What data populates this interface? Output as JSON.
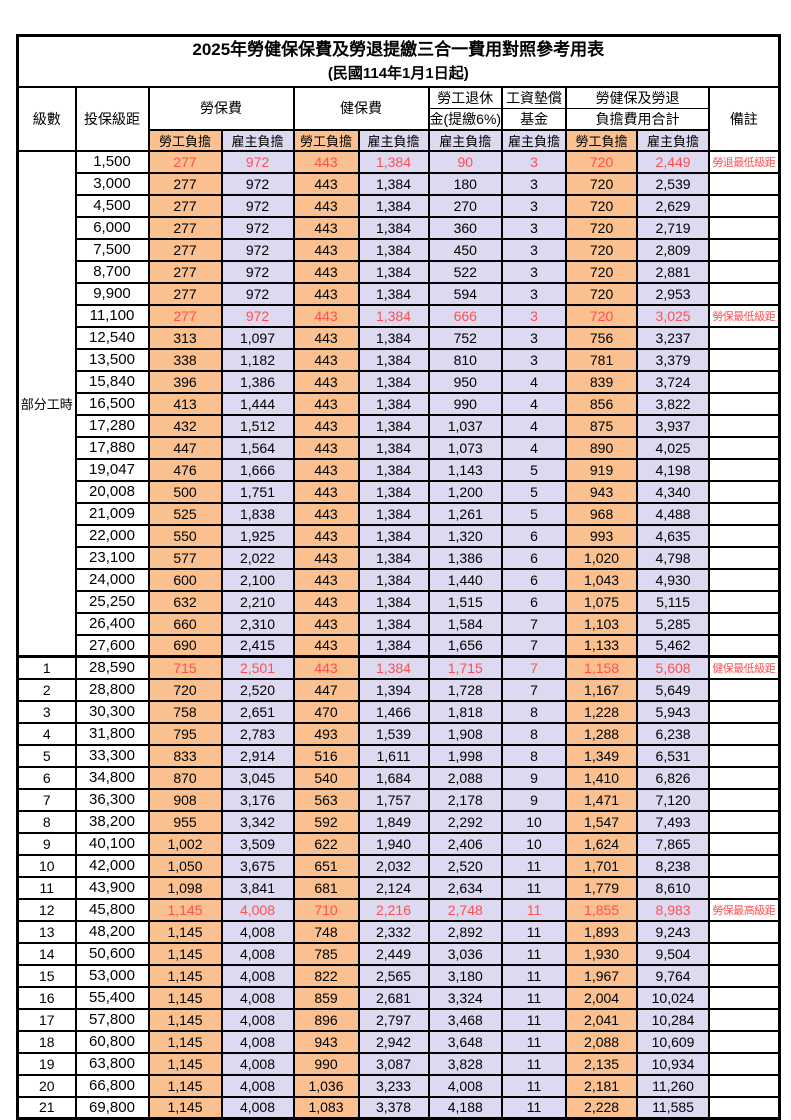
{
  "colors": {
    "employee_bg": "#FAC090",
    "employer_bg": "#DCD9F0",
    "highlight_red": "#FF5050"
  },
  "table": {
    "title": "2025年勞健保保費及勞退提繳三合一費用對照參考用表",
    "subtitle": "(民國114年1月1日起)",
    "headers": {
      "level": "級數",
      "bracket": "投保級距",
      "labor_insurance": "勞保費",
      "health_insurance": "健保費",
      "pension_line1": "勞工退休",
      "pension_line2": "金(提繳6%)",
      "wage_fund_line1": "工資墊償",
      "wage_fund_line2": "基金",
      "total_line1": "勞健保及勞退",
      "total_line2": "負擔費用合計",
      "remark": "備註",
      "employee_share": "勞工負擔",
      "employer_share": "雇主負擔"
    },
    "part_time_label": "部分工時",
    "rows": [
      {
        "level": null,
        "bracket": "1,500",
        "values": [
          "277",
          "972",
          "443",
          "1,384",
          "90",
          "3",
          "720",
          "2,449"
        ],
        "remark": "勞退最低級距",
        "red": true
      },
      {
        "level": null,
        "bracket": "3,000",
        "values": [
          "277",
          "972",
          "443",
          "1,384",
          "180",
          "3",
          "720",
          "2,539"
        ],
        "remark": "",
        "red": false
      },
      {
        "level": null,
        "bracket": "4,500",
        "values": [
          "277",
          "972",
          "443",
          "1,384",
          "270",
          "3",
          "720",
          "2,629"
        ],
        "remark": "",
        "red": false
      },
      {
        "level": null,
        "bracket": "6,000",
        "values": [
          "277",
          "972",
          "443",
          "1,384",
          "360",
          "3",
          "720",
          "2,719"
        ],
        "remark": "",
        "red": false
      },
      {
        "level": null,
        "bracket": "7,500",
        "values": [
          "277",
          "972",
          "443",
          "1,384",
          "450",
          "3",
          "720",
          "2,809"
        ],
        "remark": "",
        "red": false
      },
      {
        "level": null,
        "bracket": "8,700",
        "values": [
          "277",
          "972",
          "443",
          "1,384",
          "522",
          "3",
          "720",
          "2,881"
        ],
        "remark": "",
        "red": false
      },
      {
        "level": null,
        "bracket": "9,900",
        "values": [
          "277",
          "972",
          "443",
          "1,384",
          "594",
          "3",
          "720",
          "2,953"
        ],
        "remark": "",
        "red": false
      },
      {
        "level": null,
        "bracket": "11,100",
        "values": [
          "277",
          "972",
          "443",
          "1,384",
          "666",
          "3",
          "720",
          "3,025"
        ],
        "remark": "勞保最低級距",
        "red": true
      },
      {
        "level": null,
        "bracket": "12,540",
        "values": [
          "313",
          "1,097",
          "443",
          "1,384",
          "752",
          "3",
          "756",
          "3,237"
        ],
        "remark": "",
        "red": false
      },
      {
        "level": null,
        "bracket": "13,500",
        "values": [
          "338",
          "1,182",
          "443",
          "1,384",
          "810",
          "3",
          "781",
          "3,379"
        ],
        "remark": "",
        "red": false
      },
      {
        "level": null,
        "bracket": "15,840",
        "values": [
          "396",
          "1,386",
          "443",
          "1,384",
          "950",
          "4",
          "839",
          "3,724"
        ],
        "remark": "",
        "red": false
      },
      {
        "level": null,
        "bracket": "16,500",
        "values": [
          "413",
          "1,444",
          "443",
          "1,384",
          "990",
          "4",
          "856",
          "3,822"
        ],
        "remark": "",
        "red": false
      },
      {
        "level": null,
        "bracket": "17,280",
        "values": [
          "432",
          "1,512",
          "443",
          "1,384",
          "1,037",
          "4",
          "875",
          "3,937"
        ],
        "remark": "",
        "red": false
      },
      {
        "level": null,
        "bracket": "17,880",
        "values": [
          "447",
          "1,564",
          "443",
          "1,384",
          "1,073",
          "4",
          "890",
          "4,025"
        ],
        "remark": "",
        "red": false
      },
      {
        "level": null,
        "bracket": "19,047",
        "values": [
          "476",
          "1,666",
          "443",
          "1,384",
          "1,143",
          "5",
          "919",
          "4,198"
        ],
        "remark": "",
        "red": false
      },
      {
        "level": null,
        "bracket": "20,008",
        "values": [
          "500",
          "1,751",
          "443",
          "1,384",
          "1,200",
          "5",
          "943",
          "4,340"
        ],
        "remark": "",
        "red": false
      },
      {
        "level": null,
        "bracket": "21,009",
        "values": [
          "525",
          "1,838",
          "443",
          "1,384",
          "1,261",
          "5",
          "968",
          "4,488"
        ],
        "remark": "",
        "red": false
      },
      {
        "level": null,
        "bracket": "22,000",
        "values": [
          "550",
          "1,925",
          "443",
          "1,384",
          "1,320",
          "6",
          "993",
          "4,635"
        ],
        "remark": "",
        "red": false
      },
      {
        "level": null,
        "bracket": "23,100",
        "values": [
          "577",
          "2,022",
          "443",
          "1,384",
          "1,386",
          "6",
          "1,020",
          "4,798"
        ],
        "remark": "",
        "red": false
      },
      {
        "level": null,
        "bracket": "24,000",
        "values": [
          "600",
          "2,100",
          "443",
          "1,384",
          "1,440",
          "6",
          "1,043",
          "4,930"
        ],
        "remark": "",
        "red": false
      },
      {
        "level": null,
        "bracket": "25,250",
        "values": [
          "632",
          "2,210",
          "443",
          "1,384",
          "1,515",
          "6",
          "1,075",
          "5,115"
        ],
        "remark": "",
        "red": false
      },
      {
        "level": null,
        "bracket": "26,400",
        "values": [
          "660",
          "2,310",
          "443",
          "1,384",
          "1,584",
          "7",
          "1,103",
          "5,285"
        ],
        "remark": "",
        "red": false
      },
      {
        "level": null,
        "bracket": "27,600",
        "values": [
          "690",
          "2,415",
          "443",
          "1,384",
          "1,656",
          "7",
          "1,133",
          "5,462"
        ],
        "remark": "",
        "red": false
      },
      {
        "level": "1",
        "bracket": "28,590",
        "values": [
          "715",
          "2,501",
          "443",
          "1,384",
          "1,715",
          "7",
          "1,158",
          "5,608"
        ],
        "remark": "健保最低級距",
        "red": true
      },
      {
        "level": "2",
        "bracket": "28,800",
        "values": [
          "720",
          "2,520",
          "447",
          "1,394",
          "1,728",
          "7",
          "1,167",
          "5,649"
        ],
        "remark": "",
        "red": false
      },
      {
        "level": "3",
        "bracket": "30,300",
        "values": [
          "758",
          "2,651",
          "470",
          "1,466",
          "1,818",
          "8",
          "1,228",
          "5,943"
        ],
        "remark": "",
        "red": false
      },
      {
        "level": "4",
        "bracket": "31,800",
        "values": [
          "795",
          "2,783",
          "493",
          "1,539",
          "1,908",
          "8",
          "1,288",
          "6,238"
        ],
        "remark": "",
        "red": false
      },
      {
        "level": "5",
        "bracket": "33,300",
        "values": [
          "833",
          "2,914",
          "516",
          "1,611",
          "1,998",
          "8",
          "1,349",
          "6,531"
        ],
        "remark": "",
        "red": false
      },
      {
        "level": "6",
        "bracket": "34,800",
        "values": [
          "870",
          "3,045",
          "540",
          "1,684",
          "2,088",
          "9",
          "1,410",
          "6,826"
        ],
        "remark": "",
        "red": false
      },
      {
        "level": "7",
        "bracket": "36,300",
        "values": [
          "908",
          "3,176",
          "563",
          "1,757",
          "2,178",
          "9",
          "1,471",
          "7,120"
        ],
        "remark": "",
        "red": false
      },
      {
        "level": "8",
        "bracket": "38,200",
        "values": [
          "955",
          "3,342",
          "592",
          "1,849",
          "2,292",
          "10",
          "1,547",
          "7,493"
        ],
        "remark": "",
        "red": false
      },
      {
        "level": "9",
        "bracket": "40,100",
        "values": [
          "1,002",
          "3,509",
          "622",
          "1,940",
          "2,406",
          "10",
          "1,624",
          "7,865"
        ],
        "remark": "",
        "red": false
      },
      {
        "level": "10",
        "bracket": "42,000",
        "values": [
          "1,050",
          "3,675",
          "651",
          "2,032",
          "2,520",
          "11",
          "1,701",
          "8,238"
        ],
        "remark": "",
        "red": false
      },
      {
        "level": "11",
        "bracket": "43,900",
        "values": [
          "1,098",
          "3,841",
          "681",
          "2,124",
          "2,634",
          "11",
          "1,779",
          "8,610"
        ],
        "remark": "",
        "red": false
      },
      {
        "level": "12",
        "bracket": "45,800",
        "values": [
          "1,145",
          "4,008",
          "710",
          "2,216",
          "2,748",
          "11",
          "1,855",
          "8,983"
        ],
        "remark": "勞保最高級距",
        "red": true
      },
      {
        "level": "13",
        "bracket": "48,200",
        "values": [
          "1,145",
          "4,008",
          "748",
          "2,332",
          "2,892",
          "11",
          "1,893",
          "9,243"
        ],
        "remark": "",
        "red": false
      },
      {
        "level": "14",
        "bracket": "50,600",
        "values": [
          "1,145",
          "4,008",
          "785",
          "2,449",
          "3,036",
          "11",
          "1,930",
          "9,504"
        ],
        "remark": "",
        "red": false
      },
      {
        "level": "15",
        "bracket": "53,000",
        "values": [
          "1,145",
          "4,008",
          "822",
          "2,565",
          "3,180",
          "11",
          "1,967",
          "9,764"
        ],
        "remark": "",
        "red": false
      },
      {
        "level": "16",
        "bracket": "55,400",
        "values": [
          "1,145",
          "4,008",
          "859",
          "2,681",
          "3,324",
          "11",
          "2,004",
          "10,024"
        ],
        "remark": "",
        "red": false
      },
      {
        "level": "17",
        "bracket": "57,800",
        "values": [
          "1,145",
          "4,008",
          "896",
          "2,797",
          "3,468",
          "11",
          "2,041",
          "10,284"
        ],
        "remark": "",
        "red": false
      },
      {
        "level": "18",
        "bracket": "60,800",
        "values": [
          "1,145",
          "4,008",
          "943",
          "2,942",
          "3,648",
          "11",
          "2,088",
          "10,609"
        ],
        "remark": "",
        "red": false
      },
      {
        "level": "19",
        "bracket": "63,800",
        "values": [
          "1,145",
          "4,008",
          "990",
          "3,087",
          "3,828",
          "11",
          "2,135",
          "10,934"
        ],
        "remark": "",
        "red": false
      },
      {
        "level": "20",
        "bracket": "66,800",
        "values": [
          "1,145",
          "4,008",
          "1,036",
          "3,233",
          "4,008",
          "11",
          "2,181",
          "11,260"
        ],
        "remark": "",
        "red": false
      },
      {
        "level": "21",
        "bracket": "69,800",
        "values": [
          "1,145",
          "4,008",
          "1,083",
          "3,378",
          "4,188",
          "11",
          "2,228",
          "11,585"
        ],
        "remark": "",
        "red": false
      }
    ]
  }
}
